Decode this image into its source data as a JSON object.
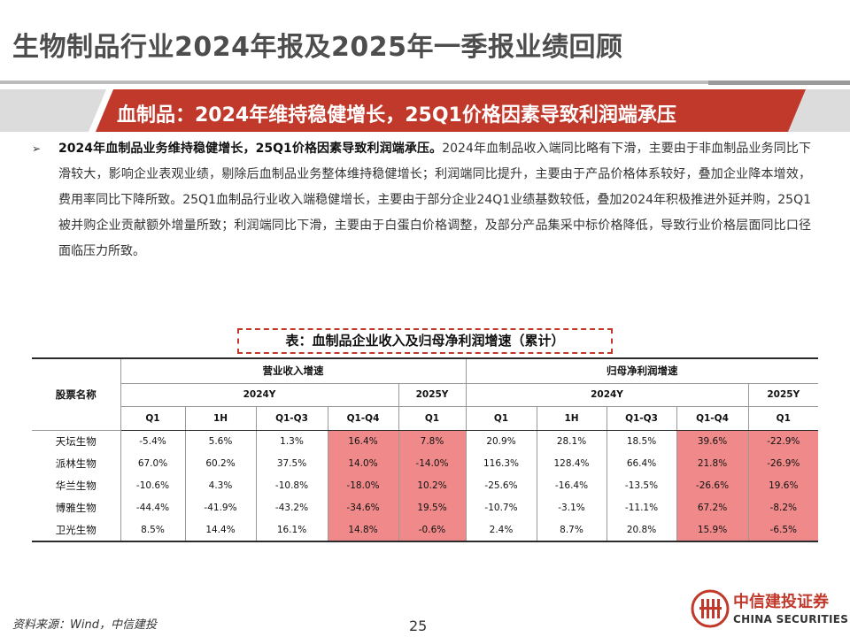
{
  "page": {
    "title": "生物制品行业2024年报及2025年一季报业绩回顾",
    "section_title": "血制品：2024年维持稳健增长，25Q1价格因素导致利润端承压",
    "page_number": "25",
    "source": "资料来源：Wind，中信建投"
  },
  "bullet": {
    "marker": "➢",
    "lead": "2024年血制品业务维持稳健增长，25Q1价格因素导致利润端承压。",
    "body": "2024年血制品收入端同比略有下滑，主要由于非血制品业务同比下滑较大，影响企业表观业绩，剔除后血制品业务整体维持稳健增长；利润端同比提升，主要由于产品价格体系较好，叠加企业降本增效，费用率同比下降所致。25Q1血制品行业收入端稳健增长，主要由于部分企业24Q1业绩基数较低，叠加2024年积极推进外延并购，25Q1被并购企业贡献额外增量所致；利润端同比下滑，主要由于白蛋白价格调整，及部分产品集采中标价格降低，导致行业价格层面同比口径面临压力所致。"
  },
  "table": {
    "caption": "表：血制品企业收入及归母净利润增速（累计）",
    "stock_header": "股票名称",
    "groups": [
      "营业收入增速",
      "归母净利润增速"
    ],
    "years": [
      "2024Y",
      "2025Y",
      "2024Y",
      "2025Y"
    ],
    "periods": [
      "Q1",
      "1H",
      "Q1-Q3",
      "Q1-Q4",
      "Q1",
      "Q1",
      "1H",
      "Q1-Q3",
      "Q1-Q4",
      "Q1"
    ],
    "rows": [
      {
        "name": "天坛生物",
        "values": [
          "-5.4%",
          "5.6%",
          "1.3%",
          "16.4%",
          "7.8%",
          "20.9%",
          "28.1%",
          "18.5%",
          "39.6%",
          "-22.9%"
        ]
      },
      {
        "name": "派林生物",
        "values": [
          "67.0%",
          "60.2%",
          "37.5%",
          "14.0%",
          "-14.0%",
          "116.3%",
          "128.4%",
          "66.4%",
          "21.8%",
          "-26.9%"
        ]
      },
      {
        "name": "华兰生物",
        "values": [
          "-10.6%",
          "4.3%",
          "-10.8%",
          "-18.0%",
          "10.2%",
          "-25.6%",
          "-16.4%",
          "-13.5%",
          "-26.6%",
          "19.6%"
        ]
      },
      {
        "name": "博雅生物",
        "values": [
          "-44.4%",
          "-41.9%",
          "-43.2%",
          "-34.6%",
          "19.5%",
          "-10.7%",
          "-3.1%",
          "-11.1%",
          "67.2%",
          "-8.2%"
        ]
      },
      {
        "name": "卫光生物",
        "values": [
          "8.5%",
          "14.4%",
          "16.1%",
          "14.8%",
          "-0.6%",
          "2.4%",
          "8.7%",
          "20.8%",
          "15.9%",
          "-6.5%"
        ]
      }
    ]
  },
  "logo": {
    "name": "中信建投证券",
    "english": "CHINA SECURITIES"
  },
  "colors": {
    "banner": "#c0392b",
    "highlight": "#f08a8a",
    "title_gray": "#4d4d4d"
  }
}
